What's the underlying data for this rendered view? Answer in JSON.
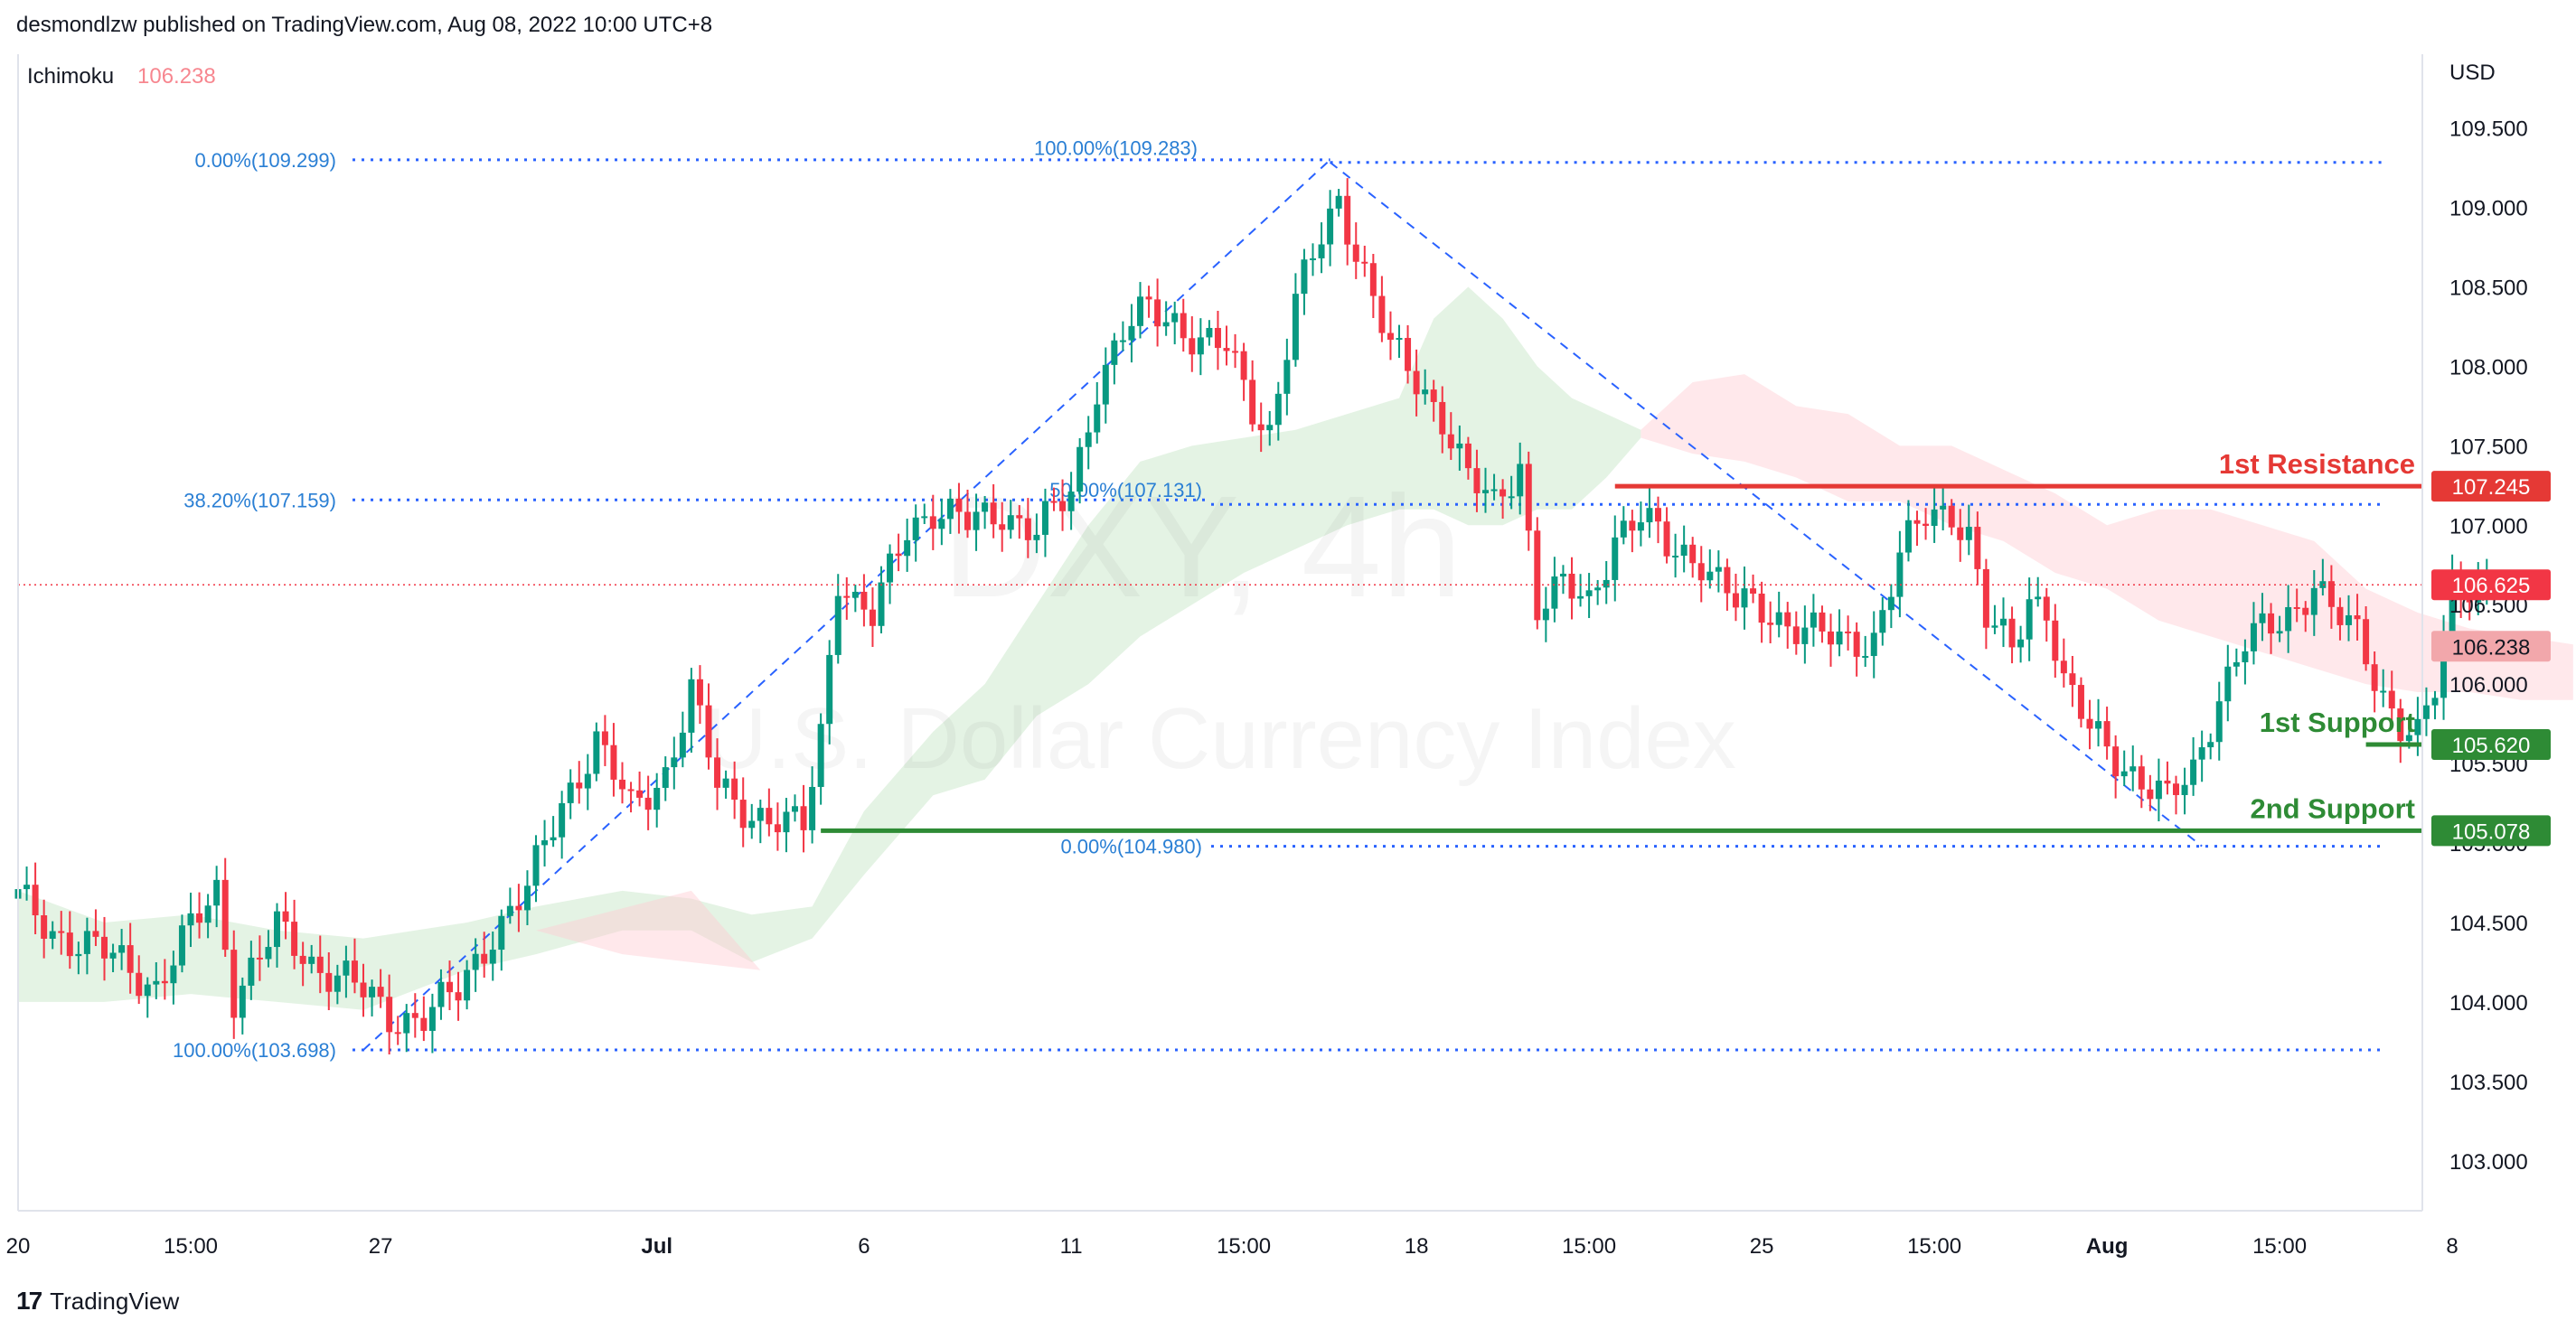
{
  "header": {
    "published": "desmondlzw published on TradingView.com, Aug 08, 2022 10:00 UTC+8"
  },
  "footer": {
    "brand": "TradingView",
    "logo_glyph": "17"
  },
  "watermark": {
    "symbol": "DXY, 4h",
    "name": "U.S. Dollar Currency Index"
  },
  "colors": {
    "up": "#089981",
    "down": "#f23645",
    "fib": "#2962ff",
    "fib_text": "#2a7fd4",
    "resistance": "#e53935",
    "support": "#2e8b35",
    "cloud_bull": "#a5d6a7",
    "cloud_bear": "#ffcdd2"
  },
  "chart_data": {
    "type": "candlestick",
    "indicator": {
      "name": "Ichimoku",
      "value": "106.238"
    },
    "currency": "USD",
    "ylim": [
      102.8,
      109.85
    ],
    "y_ticks": [
      103.0,
      103.5,
      104.0,
      104.5,
      105.0,
      105.5,
      106.0,
      106.5,
      107.0,
      107.5,
      108.0,
      108.5,
      109.0,
      109.5
    ],
    "x_ticks": [
      {
        "i": 0,
        "label": "20"
      },
      {
        "i": 20,
        "label": "15:00"
      },
      {
        "i": 42,
        "label": "27"
      },
      {
        "i": 74,
        "label": "Jul"
      },
      {
        "i": 98,
        "label": "6"
      },
      {
        "i": 122,
        "label": "11"
      },
      {
        "i": 142,
        "label": "15:00"
      },
      {
        "i": 162,
        "label": "18"
      },
      {
        "i": 182,
        "label": "15:00"
      },
      {
        "i": 202,
        "label": "25"
      },
      {
        "i": 222,
        "label": "15:00"
      },
      {
        "i": 242,
        "label": "Aug"
      },
      {
        "i": 262,
        "label": "15:00"
      },
      {
        "i": 282,
        "label": "8"
      }
    ],
    "anchors": [
      [
        0,
        104.65
      ],
      [
        4,
        104.45
      ],
      [
        8,
        104.35
      ],
      [
        12,
        104.25
      ],
      [
        16,
        104.1
      ],
      [
        20,
        104.45
      ],
      [
        23,
        104.7
      ],
      [
        25,
        104.05
      ],
      [
        30,
        104.45
      ],
      [
        34,
        104.25
      ],
      [
        38,
        104.15
      ],
      [
        43,
        103.9
      ],
      [
        47,
        103.92
      ],
      [
        51,
        104.05
      ],
      [
        55,
        104.45
      ],
      [
        59,
        104.7
      ],
      [
        63,
        105.25
      ],
      [
        67,
        105.65
      ],
      [
        71,
        105.2
      ],
      [
        75,
        105.45
      ],
      [
        78,
        105.95
      ],
      [
        81,
        105.35
      ],
      [
        85,
        105.2
      ],
      [
        89,
        105.1
      ],
      [
        91,
        105.1
      ],
      [
        93,
        105.7
      ],
      [
        95,
        106.7
      ],
      [
        97,
        106.5
      ],
      [
        99,
        106.4
      ],
      [
        101,
        106.7
      ],
      [
        103,
        107.0
      ],
      [
        106,
        107.1
      ],
      [
        110,
        107.0
      ],
      [
        114,
        107.1
      ],
      [
        118,
        106.95
      ],
      [
        122,
        107.2
      ],
      [
        125,
        107.9
      ],
      [
        128,
        108.2
      ],
      [
        131,
        108.35
      ],
      [
        134,
        108.3
      ],
      [
        137,
        108.15
      ],
      [
        140,
        108.1
      ],
      [
        143,
        107.75
      ],
      [
        145,
        107.6
      ],
      [
        148,
        108.4
      ],
      [
        151,
        108.8
      ],
      [
        153,
        109.05
      ],
      [
        156,
        108.6
      ],
      [
        159,
        108.1
      ],
      [
        162,
        107.9
      ],
      [
        165,
        107.7
      ],
      [
        168,
        107.3
      ],
      [
        171,
        107.1
      ],
      [
        174,
        107.4
      ],
      [
        176,
        106.5
      ],
      [
        179,
        106.6
      ],
      [
        182,
        106.5
      ],
      [
        185,
        106.95
      ],
      [
        188,
        107.05
      ],
      [
        191,
        106.85
      ],
      [
        195,
        106.8
      ],
      [
        199,
        106.5
      ],
      [
        203,
        106.45
      ],
      [
        207,
        106.35
      ],
      [
        211,
        106.25
      ],
      [
        215,
        106.3
      ],
      [
        218,
        106.8
      ],
      [
        221,
        107.05
      ],
      [
        224,
        107.1
      ],
      [
        226,
        106.95
      ],
      [
        228,
        106.4
      ],
      [
        231,
        106.2
      ],
      [
        233,
        106.55
      ],
      [
        235,
        106.5
      ],
      [
        237,
        106.0
      ],
      [
        240,
        105.7
      ],
      [
        243,
        105.55
      ],
      [
        246,
        105.4
      ],
      [
        249,
        105.25
      ],
      [
        252,
        105.45
      ],
      [
        255,
        105.95
      ],
      [
        258,
        106.25
      ],
      [
        261,
        106.35
      ],
      [
        264,
        106.5
      ],
      [
        266,
        106.65
      ],
      [
        268,
        106.45
      ],
      [
        271,
        106.3
      ],
      [
        274,
        105.95
      ],
      [
        276,
        105.75
      ],
      [
        278,
        105.65
      ],
      [
        280,
        105.95
      ],
      [
        282,
        106.6
      ],
      [
        284,
        106.65
      ],
      [
        286,
        106.62
      ]
    ],
    "candle_count": 287,
    "cloud": [
      [
        0,
        104.7,
        104.0
      ],
      [
        10,
        104.5,
        104.0
      ],
      [
        20,
        104.55,
        104.05
      ],
      [
        30,
        104.45,
        104.0
      ],
      [
        40,
        104.4,
        103.95
      ],
      [
        52,
        104.5,
        104.2
      ],
      [
        60,
        104.6,
        104.3
      ],
      [
        70,
        104.7,
        104.45
      ],
      [
        78,
        104.65,
        104.45
      ],
      [
        85,
        104.55,
        104.25
      ],
      [
        92,
        104.6,
        104.4
      ],
      [
        98,
        105.2,
        104.8
      ],
      [
        106,
        105.7,
        105.3
      ],
      [
        112,
        106.0,
        105.4
      ],
      [
        118,
        106.5,
        105.8
      ],
      [
        124,
        107.0,
        106.0
      ],
      [
        130,
        107.4,
        106.3
      ],
      [
        136,
        107.5,
        106.5
      ],
      [
        142,
        107.55,
        106.7
      ],
      [
        148,
        107.6,
        106.85
      ],
      [
        154,
        107.7,
        107.0
      ],
      [
        160,
        107.8,
        107.1
      ],
      [
        164,
        108.3,
        107.1
      ],
      [
        168,
        108.5,
        107.0
      ],
      [
        172,
        108.3,
        107.0
      ],
      [
        176,
        108.0,
        107.1
      ],
      [
        180,
        107.8,
        107.1
      ],
      [
        184,
        107.7,
        107.3
      ],
      [
        188,
        107.6,
        107.55
      ],
      [
        194,
        107.9,
        107.45
      ],
      [
        200,
        107.95,
        107.4
      ],
      [
        206,
        107.75,
        107.3
      ],
      [
        212,
        107.7,
        107.15
      ],
      [
        218,
        107.5,
        107.15
      ],
      [
        224,
        107.5,
        107.0
      ],
      [
        230,
        107.35,
        106.9
      ],
      [
        236,
        107.2,
        106.7
      ],
      [
        242,
        107.0,
        106.6
      ],
      [
        248,
        107.1,
        106.4
      ],
      [
        254,
        107.1,
        106.3
      ],
      [
        260,
        107.0,
        106.2
      ],
      [
        266,
        106.9,
        106.1
      ],
      [
        272,
        106.6,
        106.0
      ],
      [
        278,
        106.45,
        105.95
      ],
      [
        284,
        106.35,
        105.95
      ],
      [
        290,
        106.3,
        105.9
      ],
      [
        296,
        106.25,
        105.9
      ]
    ],
    "fib_retracements": [
      {
        "from_i": 40,
        "to_i": 152,
        "label_left": "0.00%(109.299)",
        "price_top": 109.299,
        "label_mid": "38.20%(107.159)",
        "price_mid": 107.159,
        "label_bottom": "100.00%(103.698)",
        "price_bottom": 103.698
      },
      {
        "from_i": 152,
        "to_i": 253,
        "label_top": "100.00%(109.283)",
        "price_top": 109.283,
        "label_mid": "50.00%(107.131)",
        "price_mid": 107.131,
        "label_bottom": "0.00%(104.980)",
        "price_bottom": 104.98
      }
    ],
    "levels": [
      {
        "name": "1st Resistance",
        "price": 107.245,
        "label": "107.245",
        "color": "#e53935",
        "from_i": 185
      },
      {
        "name": "1st Support",
        "price": 105.62,
        "label": "105.620",
        "color": "#2e8b35",
        "from_i": 272
      },
      {
        "name": "2nd Support",
        "price": 105.078,
        "label": "105.078",
        "color": "#2e8b35",
        "from_i": 93
      }
    ],
    "price_tags": [
      {
        "price": 106.625,
        "label": "106.625",
        "kind": "current"
      },
      {
        "price": 106.238,
        "label": "106.238",
        "kind": "ichimoku"
      }
    ]
  }
}
